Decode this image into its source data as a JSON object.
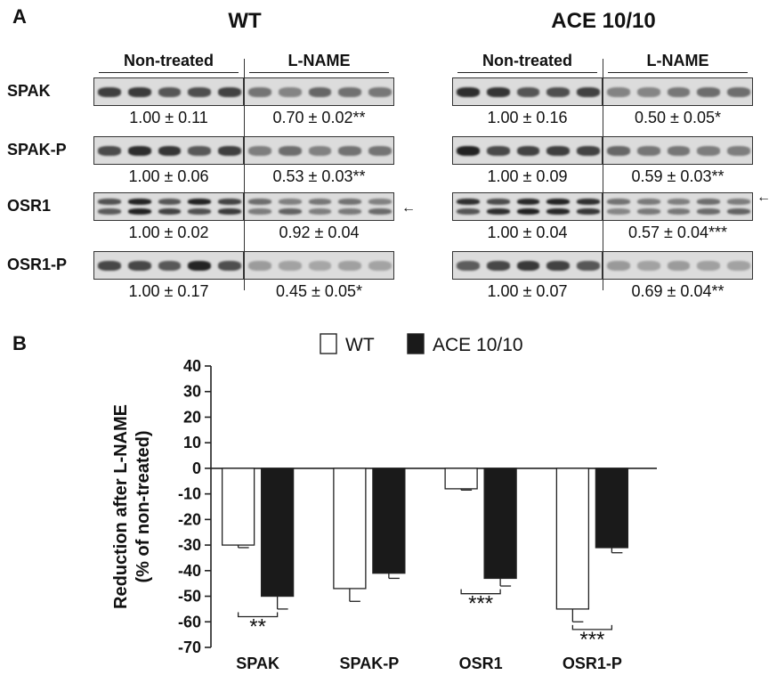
{
  "panel_a": {
    "letter": "A",
    "genotypes": [
      {
        "title": "WT",
        "conditions": [
          "Non-treated",
          "L-NAME"
        ],
        "rows": [
          {
            "label": "SPAK",
            "left": "1.00 ± 0.11",
            "right": "0.70 ± 0.02**"
          },
          {
            "label": "SPAK-P",
            "left": "1.00 ± 0.06",
            "right": "0.53 ± 0.03**"
          },
          {
            "label": "OSR1",
            "left": "1.00 ± 0.02",
            "right": "0.92 ± 0.04"
          },
          {
            "label": "OSR1-P",
            "left": "1.00 ± 0.17",
            "right": "0.45 ± 0.05*"
          }
        ]
      },
      {
        "title": "ACE 10/10",
        "conditions": [
          "Non-treated",
          "L-NAME"
        ],
        "rows": [
          {
            "label": "SPAK",
            "left": "1.00 ± 0.16",
            "right": "0.50 ± 0.05*"
          },
          {
            "label": "SPAK-P",
            "left": "1.00 ± 0.09",
            "right": "0.59 ± 0.03**"
          },
          {
            "label": "OSR1",
            "left": "1.00 ± 0.04",
            "right": "0.57 ± 0.04***"
          },
          {
            "label": "OSR1-P",
            "left": "1.00 ± 0.07",
            "right": "0.69 ± 0.04**"
          }
        ]
      }
    ],
    "arrow_glyph": "←"
  },
  "panel_b": {
    "letter": "B",
    "chart_data": {
      "type": "bar",
      "categories": [
        "SPAK",
        "SPAK-P",
        "OSR1",
        "OSR1-P"
      ],
      "series": [
        {
          "name": "WT",
          "values": [
            -30,
            -47,
            -8,
            -55
          ],
          "errors": [
            1,
            5,
            0.5,
            5
          ],
          "color": "#ffffff"
        },
        {
          "name": "ACE 10/10",
          "values": [
            -50,
            -41,
            -43,
            -31
          ],
          "errors": [
            5,
            2,
            3,
            2
          ],
          "color": "#1a1a1a"
        }
      ],
      "ylabel": "Reduction after L-NAME (% of non-treated)",
      "ylabel_lines": [
        "Reduction after L-NAME",
        "(% of non-treated)"
      ],
      "ylim": [
        -70,
        40
      ],
      "yticks": [
        40,
        30,
        20,
        10,
        0,
        -10,
        -20,
        -30,
        -40,
        -50,
        -60,
        -70
      ],
      "legend_placement": "top-center",
      "grid": false,
      "significance": [
        {
          "category": "SPAK",
          "label": "**",
          "level": -58
        },
        {
          "category": "OSR1",
          "label": "***",
          "level": -49
        },
        {
          "category": "OSR1-P",
          "label": "***",
          "level": -63
        }
      ]
    }
  }
}
